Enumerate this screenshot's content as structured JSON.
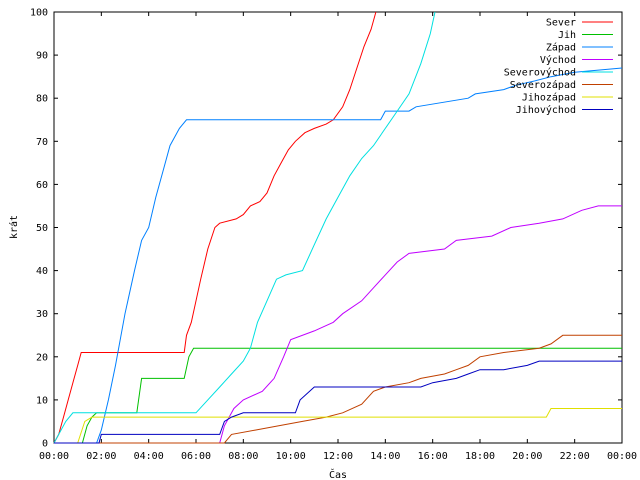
{
  "chart_data": {
    "type": "line",
    "xlabel": "Čas",
    "ylabel": "krát",
    "xlim": [
      0,
      24
    ],
    "ylim": [
      0,
      100
    ],
    "x_ticks": [
      "00:00",
      "02:00",
      "04:00",
      "06:00",
      "08:00",
      "10:00",
      "12:00",
      "14:00",
      "16:00",
      "18:00",
      "20:00",
      "22:00",
      "00:00"
    ],
    "y_ticks": [
      "0",
      "10",
      "20",
      "30",
      "40",
      "50",
      "60",
      "70",
      "80",
      "90",
      "100"
    ],
    "grid": false,
    "legend_position": "top-right",
    "series": [
      {
        "name": "Sever",
        "color": "#ff0000",
        "points": [
          [
            0,
            0
          ],
          [
            0.2,
            2
          ],
          [
            0.4,
            6
          ],
          [
            0.6,
            10
          ],
          [
            0.8,
            14
          ],
          [
            1.0,
            18
          ],
          [
            1.15,
            21
          ],
          [
            5.5,
            21
          ],
          [
            5.6,
            25
          ],
          [
            5.8,
            28
          ],
          [
            6.0,
            33
          ],
          [
            6.2,
            38
          ],
          [
            6.5,
            45
          ],
          [
            6.8,
            50
          ],
          [
            7.0,
            51
          ],
          [
            7.7,
            52
          ],
          [
            8.0,
            53
          ],
          [
            8.3,
            55
          ],
          [
            8.7,
            56
          ],
          [
            9.0,
            58
          ],
          [
            9.3,
            62
          ],
          [
            9.6,
            65
          ],
          [
            9.9,
            68
          ],
          [
            10.2,
            70
          ],
          [
            10.6,
            72
          ],
          [
            11.0,
            73
          ],
          [
            11.5,
            74
          ],
          [
            11.8,
            75
          ],
          [
            12.2,
            78
          ],
          [
            12.5,
            82
          ],
          [
            12.8,
            87
          ],
          [
            13.1,
            92
          ],
          [
            13.4,
            96
          ],
          [
            13.6,
            100
          ]
        ]
      },
      {
        "name": "Jih",
        "color": "#00c000",
        "points": [
          [
            0,
            0
          ],
          [
            1.2,
            0
          ],
          [
            1.4,
            4
          ],
          [
            1.6,
            6
          ],
          [
            1.8,
            7
          ],
          [
            3.5,
            7
          ],
          [
            3.7,
            15
          ],
          [
            5.5,
            15
          ],
          [
            5.7,
            20
          ],
          [
            5.9,
            22
          ],
          [
            24,
            22
          ]
        ]
      },
      {
        "name": "Západ",
        "color": "#0080ff",
        "points": [
          [
            0,
            0
          ],
          [
            1.8,
            0
          ],
          [
            2.0,
            3
          ],
          [
            2.3,
            10
          ],
          [
            2.6,
            18
          ],
          [
            3.0,
            30
          ],
          [
            3.4,
            40
          ],
          [
            3.7,
            47
          ],
          [
            4.0,
            50
          ],
          [
            4.3,
            57
          ],
          [
            4.6,
            63
          ],
          [
            4.9,
            69
          ],
          [
            5.3,
            73
          ],
          [
            5.6,
            75
          ],
          [
            13.8,
            75
          ],
          [
            14.0,
            77
          ],
          [
            15.0,
            77
          ],
          [
            15.3,
            78
          ],
          [
            17.5,
            80
          ],
          [
            17.8,
            81
          ],
          [
            19.0,
            82
          ],
          [
            19.5,
            83
          ],
          [
            20.3,
            84
          ],
          [
            21.0,
            85
          ],
          [
            22.0,
            86
          ],
          [
            24,
            87
          ]
        ]
      },
      {
        "name": "Východ",
        "color": "#c000ff",
        "points": [
          [
            0,
            0
          ],
          [
            7.0,
            0
          ],
          [
            7.2,
            4
          ],
          [
            7.6,
            8
          ],
          [
            8.0,
            10
          ],
          [
            8.8,
            12
          ],
          [
            9.3,
            15
          ],
          [
            9.7,
            20
          ],
          [
            10.0,
            24
          ],
          [
            11.0,
            26
          ],
          [
            11.8,
            28
          ],
          [
            12.2,
            30
          ],
          [
            13.0,
            33
          ],
          [
            13.5,
            36
          ],
          [
            14.0,
            39
          ],
          [
            14.5,
            42
          ],
          [
            15.0,
            44
          ],
          [
            16.5,
            45
          ],
          [
            17.0,
            47
          ],
          [
            18.5,
            48
          ],
          [
            19.3,
            50
          ],
          [
            20.5,
            51
          ],
          [
            21.5,
            52
          ],
          [
            22.3,
            54
          ],
          [
            23.0,
            55
          ],
          [
            24,
            55
          ]
        ]
      },
      {
        "name": "Severovýchod",
        "color": "#00e0e0",
        "points": [
          [
            0,
            0
          ],
          [
            0.5,
            5
          ],
          [
            0.8,
            7
          ],
          [
            6.0,
            7
          ],
          [
            6.5,
            10
          ],
          [
            7.0,
            13
          ],
          [
            7.5,
            16
          ],
          [
            8.0,
            19
          ],
          [
            8.3,
            22
          ],
          [
            8.6,
            28
          ],
          [
            9.0,
            33
          ],
          [
            9.4,
            38
          ],
          [
            9.8,
            39
          ],
          [
            10.5,
            40
          ],
          [
            11.0,
            46
          ],
          [
            11.5,
            52
          ],
          [
            12.0,
            57
          ],
          [
            12.5,
            62
          ],
          [
            13.0,
            66
          ],
          [
            13.5,
            69
          ],
          [
            14.0,
            73
          ],
          [
            14.5,
            77
          ],
          [
            15.0,
            81
          ],
          [
            15.5,
            88
          ],
          [
            15.9,
            95
          ],
          [
            16.1,
            100
          ]
        ]
      },
      {
        "name": "Severozápad",
        "color": "#c04000",
        "points": [
          [
            0,
            0
          ],
          [
            7.2,
            0
          ],
          [
            7.5,
            2
          ],
          [
            8.5,
            3
          ],
          [
            9.5,
            4
          ],
          [
            10.5,
            5
          ],
          [
            11.5,
            6
          ],
          [
            12.2,
            7
          ],
          [
            13.0,
            9
          ],
          [
            13.5,
            12
          ],
          [
            14.0,
            13
          ],
          [
            15.0,
            14
          ],
          [
            15.5,
            15
          ],
          [
            16.5,
            16
          ],
          [
            17.0,
            17
          ],
          [
            17.5,
            18
          ],
          [
            18.0,
            20
          ],
          [
            19.0,
            21
          ],
          [
            20.5,
            22
          ],
          [
            21.0,
            23
          ],
          [
            21.5,
            25
          ],
          [
            24,
            25
          ]
        ]
      },
      {
        "name": "Jihozápad",
        "color": "#e0e000",
        "points": [
          [
            0,
            0
          ],
          [
            1.0,
            0
          ],
          [
            1.3,
            5
          ],
          [
            1.6,
            6
          ],
          [
            20.8,
            6
          ],
          [
            21.0,
            8
          ],
          [
            24,
            8
          ]
        ]
      },
      {
        "name": "Jihovýchod",
        "color": "#0000c0",
        "points": [
          [
            0,
            0
          ],
          [
            1.9,
            0
          ],
          [
            2.0,
            2
          ],
          [
            7.0,
            2
          ],
          [
            7.2,
            5
          ],
          [
            7.5,
            6
          ],
          [
            8.0,
            7
          ],
          [
            10.2,
            7
          ],
          [
            10.4,
            10
          ],
          [
            11.0,
            13
          ],
          [
            15.5,
            13
          ],
          [
            16.0,
            14
          ],
          [
            17.0,
            15
          ],
          [
            17.5,
            16
          ],
          [
            18.0,
            17
          ],
          [
            19.0,
            17
          ],
          [
            20.0,
            18
          ],
          [
            20.5,
            19
          ],
          [
            21.0,
            19
          ],
          [
            24,
            19
          ]
        ]
      }
    ]
  }
}
